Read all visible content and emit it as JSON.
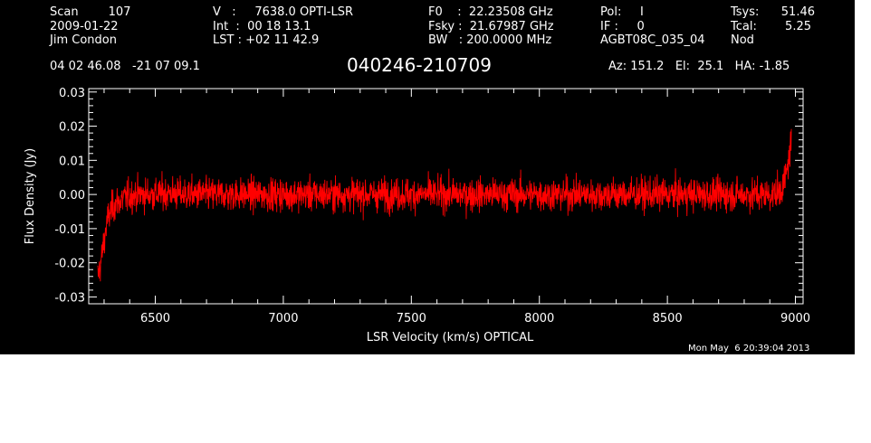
{
  "header": {
    "col1": [
      "Scan        107",
      "2009-01-22",
      "Jim Condon"
    ],
    "col2": [
      "V   :     7638.0 OPTI-LSR",
      "Int  :  00 18 13.1",
      "LST : +02 11 42.9"
    ],
    "col3": [
      "F0    :  22.23508 GHz",
      "Fsky :  21.67987 GHz",
      "BW   : 200.0000 MHz"
    ],
    "col4": [
      "Pol:     I",
      "IF :     0",
      "AGBT08C_035_04"
    ],
    "col5a": [
      "Tsys:",
      "Tcal:",
      "Nod"
    ],
    "col5b": [
      "51.46",
      "5.25",
      ""
    ],
    "coords": "04 02 46.08   -21 07 09.1",
    "source": "040246-210709",
    "azelha": "Az: 151.2   El:  25.1   HA: -1.85",
    "timestamp": "Mon May  6 20:39:04 2013"
  },
  "chart_data": {
    "type": "line",
    "title": "040246-210709",
    "xlabel": "LSR Velocity (km/s) OPTICAL",
    "ylabel": "Flux Density (Jy)",
    "xlim": [
      6240,
      9030
    ],
    "ylim": [
      -0.032,
      0.031
    ],
    "xticks": [
      6500,
      7000,
      7500,
      8000,
      8500,
      9000
    ],
    "yticks": [
      -0.03,
      -0.02,
      -0.01,
      0.0,
      0.01,
      0.02,
      0.03
    ],
    "ytick_labels": [
      "-0.03",
      "-0.02",
      "-0.01",
      "0.00",
      "0.01",
      "0.02",
      "0.03"
    ],
    "grid": false,
    "series": [
      {
        "color": "#ff0000",
        "x": [
          6275,
          6285,
          6295,
          6305,
          6315,
          6325,
          6340,
          6360,
          6380,
          6400,
          6430,
          6460,
          6500,
          6550,
          6600,
          6700,
          6800,
          6900,
          7000,
          7100,
          7200,
          7300,
          7400,
          7500,
          7600,
          7700,
          7800,
          7900,
          8000,
          8100,
          8200,
          8300,
          8400,
          8500,
          8600,
          8700,
          8800,
          8850,
          8900,
          8930,
          8950,
          8965,
          8975,
          8985
        ],
        "y": [
          -0.024,
          -0.021,
          -0.016,
          -0.011,
          -0.007,
          -0.005,
          -0.003,
          -0.002,
          -0.001,
          -0.0005,
          0.0,
          0.0,
          0.0,
          0.0005,
          0.0,
          0.0,
          0.0,
          0.0,
          0.0,
          0.0,
          0.0,
          0.0,
          0.0,
          0.0,
          0.0,
          0.0,
          0.0,
          0.0,
          0.0,
          0.0,
          0.0,
          0.0,
          0.0,
          0.0,
          0.0,
          0.0,
          0.0,
          0.0,
          0.0,
          0.0005,
          0.002,
          0.006,
          0.011,
          0.016
        ],
        "noise_rms": 0.0045
      }
    ]
  }
}
